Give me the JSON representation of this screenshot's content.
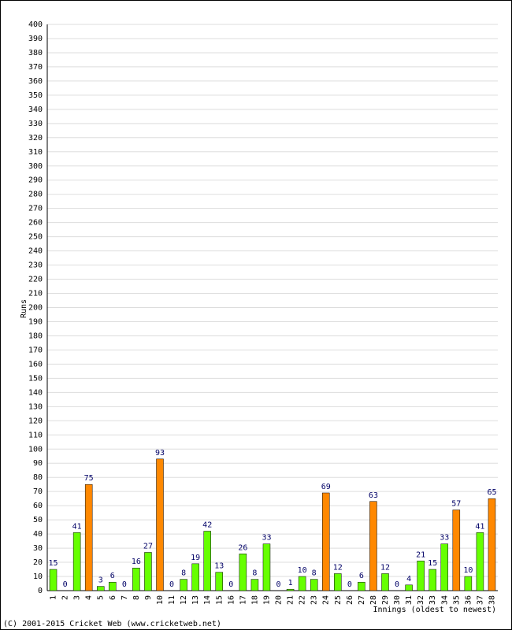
{
  "chart_data": {
    "type": "bar",
    "y_label": "Runs",
    "x_label": "Innings (oldest to newest)",
    "footer": "(C) 2001-2015 Cricket Web (www.cricketweb.net)",
    "categories": [
      "1",
      "2",
      "3",
      "4",
      "5",
      "6",
      "7",
      "8",
      "9",
      "10",
      "11",
      "12",
      "13",
      "14",
      "15",
      "16",
      "17",
      "18",
      "19",
      "20",
      "21",
      "22",
      "23",
      "24",
      "25",
      "26",
      "27",
      "28",
      "29",
      "30",
      "31",
      "32",
      "33",
      "34",
      "35",
      "36",
      "37",
      "38"
    ],
    "values": [
      15,
      0,
      41,
      75,
      3,
      6,
      0,
      16,
      27,
      93,
      0,
      8,
      19,
      42,
      13,
      0,
      26,
      8,
      33,
      0,
      1,
      10,
      8,
      69,
      12,
      0,
      6,
      63,
      12,
      0,
      4,
      21,
      15,
      33,
      57,
      10,
      41,
      65
    ],
    "colors": [
      "#66ff00",
      "#66ff00",
      "#66ff00",
      "#ff8800",
      "#66ff00",
      "#66ff00",
      "#66ff00",
      "#66ff00",
      "#66ff00",
      "#ff8800",
      "#66ff00",
      "#66ff00",
      "#66ff00",
      "#66ff00",
      "#66ff00",
      "#66ff00",
      "#66ff00",
      "#66ff00",
      "#66ff00",
      "#66ff00",
      "#66ff00",
      "#66ff00",
      "#66ff00",
      "#ff8800",
      "#66ff00",
      "#66ff00",
      "#66ff00",
      "#ff8800",
      "#66ff00",
      "#66ff00",
      "#66ff00",
      "#66ff00",
      "#66ff00",
      "#66ff00",
      "#ff8800",
      "#66ff00",
      "#66ff00",
      "#ff8800"
    ],
    "ylim": [
      0,
      400
    ],
    "yticks": [
      0,
      10,
      20,
      30,
      40,
      50,
      60,
      70,
      80,
      90,
      100,
      110,
      120,
      130,
      140,
      150,
      160,
      170,
      180,
      190,
      200,
      210,
      220,
      230,
      240,
      250,
      260,
      270,
      280,
      290,
      300,
      310,
      320,
      330,
      340,
      350,
      360,
      370,
      380,
      390,
      400
    ],
    "grid": true
  }
}
